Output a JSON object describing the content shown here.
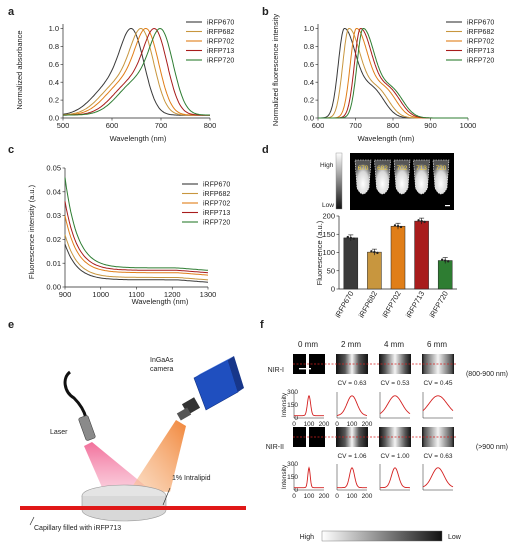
{
  "panels": {
    "a": {
      "letter": "a",
      "ylabel": "Normalized absorbance",
      "xlabel": "Wavelength (nm)",
      "xticks": [
        "500",
        "600",
        "700",
        "800"
      ],
      "yticks": [
        "0.0",
        "0.2",
        "0.4",
        "0.6",
        "0.8",
        "1.0"
      ]
    },
    "b": {
      "letter": "b",
      "ylabel": "Normalized fluorescence intensity",
      "xlabel": "Wavelength (nm)",
      "xticks": [
        "600",
        "700",
        "800",
        "900",
        "1000"
      ],
      "yticks": [
        "0.0",
        "0.2",
        "0.4",
        "0.6",
        "0.8",
        "1.0"
      ]
    },
    "c": {
      "letter": "c",
      "ylabel": "Fluorescence intensity (a.u.)",
      "xlabel": "Wavelength (nm)",
      "xticks": [
        "900",
        "1000",
        "1100",
        "1200",
        "1300"
      ],
      "yticks": [
        "0.00",
        "0.01",
        "0.02",
        "0.03",
        "0.04",
        "0.05"
      ]
    },
    "d": {
      "letter": "d",
      "high": "High",
      "low": "Low",
      "tube_labels": [
        "670",
        "682",
        "702",
        "713",
        "720"
      ],
      "ylabel": "Fluorescence (a.u.)",
      "yticks": [
        "0",
        "50",
        "100",
        "150",
        "200"
      ]
    },
    "e": {
      "letter": "e",
      "laser": "Laser",
      "camera": "InGaAs camera",
      "intralipid": "1% Intralipid",
      "capillary": "Capillary filled with iRFP713"
    },
    "f": {
      "letter": "f",
      "depths": [
        "0 mm",
        "2 mm",
        "4 mm",
        "6 mm"
      ],
      "nir1": "NIR-I",
      "nir1_range": "(800-900 nm)",
      "nir2": "NIR-II",
      "nir2_range": "(>900 nm)",
      "cv_nir1": [
        "CV = 0.63",
        "CV = 0.53",
        "CV = 0.45"
      ],
      "cv_nir2": [
        "CV = 1.06",
        "CV = 1.00",
        "CV = 0.63"
      ],
      "intensity_label": "Intensity",
      "intensity_ticks": [
        "0",
        "150",
        "300"
      ],
      "pos_ticks": [
        "0",
        "100",
        "200"
      ],
      "high": "High",
      "low": "Low"
    }
  },
  "legend": [
    "iRFP670",
    "iRFP682",
    "iRFP702",
    "iRFP713",
    "iRFP720"
  ],
  "colors": {
    "iRFP670": "#3a3a3a",
    "iRFP682": "#c8963e",
    "iRFP702": "#e07e18",
    "iRFP713": "#a81c1c",
    "iRFP720": "#2e7d32",
    "nir_red": "#d42020",
    "capillary": "#e01818",
    "laser": "#f06090",
    "camera_beam": "#f59a50",
    "camera_body": "#2050c0"
  },
  "chart_data": [
    {
      "type": "line",
      "panel": "a",
      "xlabel": "Wavelength (nm)",
      "ylabel": "Normalized absorbance",
      "xlim": [
        500,
        800
      ],
      "ylim": [
        0,
        1.05
      ],
      "series": [
        {
          "name": "iRFP670",
          "peak": 643,
          "shoulder": 600
        },
        {
          "name": "iRFP682",
          "peak": 663,
          "shoulder": 615
        },
        {
          "name": "iRFP702",
          "peak": 673,
          "shoulder": 625
        },
        {
          "name": "iRFP713",
          "peak": 690,
          "shoulder": 640
        },
        {
          "name": "iRFP720",
          "peak": 702,
          "shoulder": 650
        }
      ]
    },
    {
      "type": "line",
      "panel": "b",
      "xlabel": "Wavelength (nm)",
      "ylabel": "Normalized fluorescence intensity",
      "xlim": [
        600,
        1000
      ],
      "ylim": [
        0,
        1.05
      ],
      "series": [
        {
          "name": "iRFP670",
          "peak": 670
        },
        {
          "name": "iRFP682",
          "peak": 682
        },
        {
          "name": "iRFP702",
          "peak": 702
        },
        {
          "name": "iRFP713",
          "peak": 713
        },
        {
          "name": "iRFP720",
          "peak": 720
        }
      ]
    },
    {
      "type": "line",
      "panel": "c",
      "xlabel": "Wavelength (nm)",
      "ylabel": "Fluorescence intensity (a.u.)",
      "xlim": [
        900,
        1300
      ],
      "ylim": [
        0,
        0.05
      ],
      "series": [
        {
          "name": "iRFP670",
          "start": 0.018,
          "floor": 0.003
        },
        {
          "name": "iRFP682",
          "start": 0.022,
          "floor": 0.004
        },
        {
          "name": "iRFP702",
          "start": 0.03,
          "floor": 0.006
        },
        {
          "name": "iRFP713",
          "start": 0.036,
          "floor": 0.007
        },
        {
          "name": "iRFP720",
          "start": 0.046,
          "floor": 0.008
        }
      ]
    },
    {
      "type": "bar",
      "panel": "d",
      "ylabel": "Fluorescence (a.u.)",
      "ylim": [
        0,
        200
      ],
      "categories": [
        "iRFP670",
        "iRFP682",
        "iRFP702",
        "iRFP713",
        "iRFP720"
      ],
      "values": [
        140,
        101,
        172,
        186,
        78
      ]
    }
  ]
}
